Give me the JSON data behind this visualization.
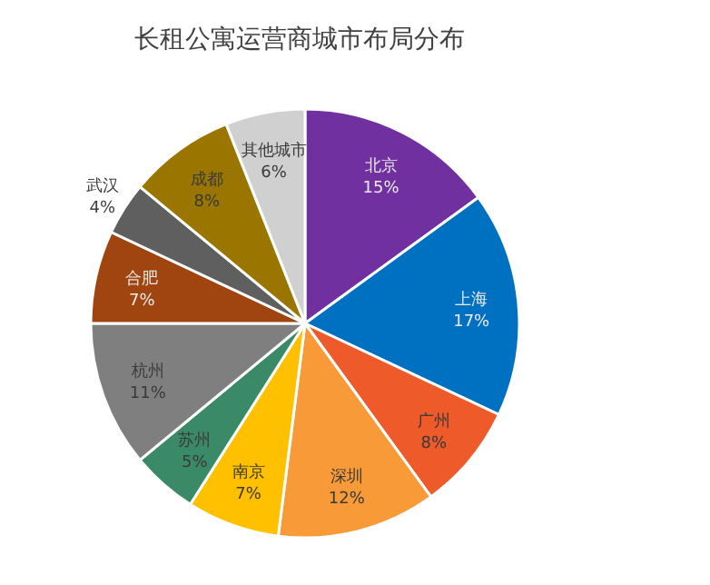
{
  "chart_data": {
    "type": "pie",
    "title": "长租公寓运营商城市布局分布",
    "categories": [
      "北京",
      "上海",
      "广州",
      "深圳",
      "南京",
      "苏州",
      "杭州",
      "合肥",
      "武汉",
      "成都",
      "其他城市"
    ],
    "values": [
      15,
      17,
      8,
      12,
      7,
      5,
      11,
      7,
      4,
      8,
      6
    ],
    "colors": [
      "#7030a0",
      "#0070c0",
      "#ee5a2a",
      "#f99a38",
      "#ffc000",
      "#3a8a68",
      "#7f7f7f",
      "#a0450f",
      "#5f5f5f",
      "#9a7600",
      "#d0d0d0"
    ],
    "value_labels": [
      "15%",
      "17%",
      "8%",
      "12%",
      "7%",
      "5%",
      "11%",
      "7%",
      "4%",
      "8%",
      "6%"
    ]
  }
}
